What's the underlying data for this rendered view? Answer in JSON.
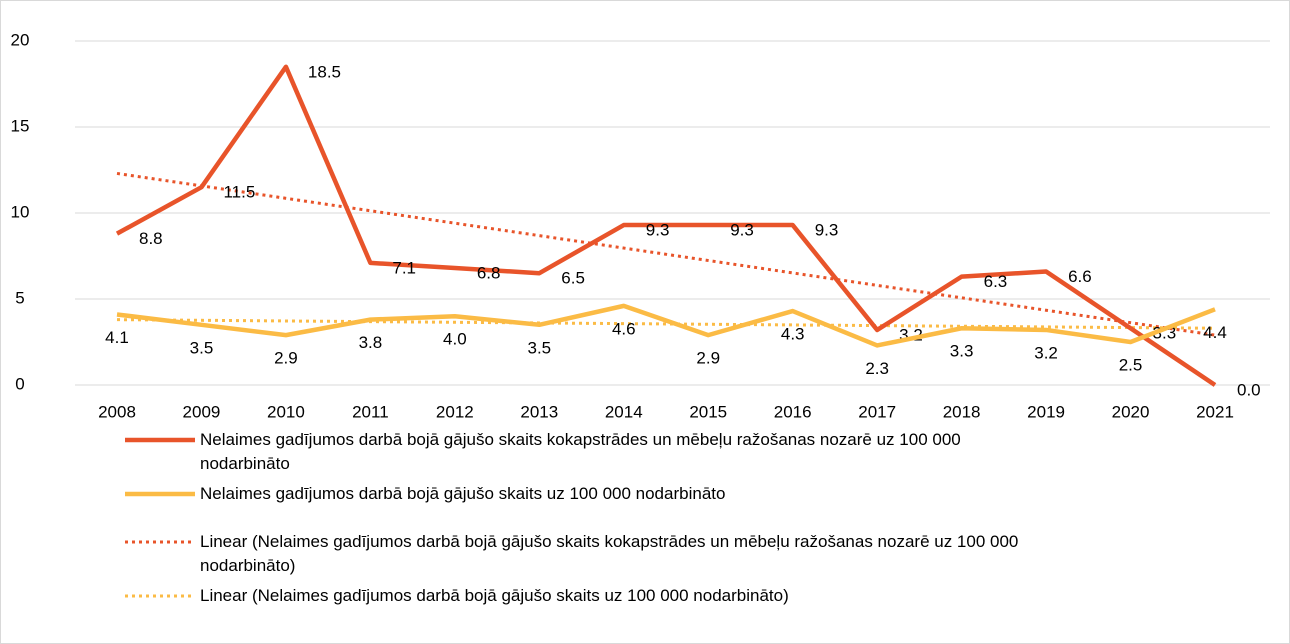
{
  "chart_data": {
    "type": "line",
    "categories": [
      "2008",
      "2009",
      "2010",
      "2011",
      "2012",
      "2013",
      "2014",
      "2015",
      "2016",
      "2017",
      "2018",
      "2019",
      "2020",
      "2021"
    ],
    "series": [
      {
        "name": "Nelaimes gadījumos darbā bojā gājušo skaits kokapstrādes un mēbeļu ražošanas nozarē uz 100 000 nodarbināto",
        "color": "#e8542a",
        "values": [
          8.8,
          11.5,
          18.5,
          7.1,
          6.8,
          6.5,
          9.3,
          9.3,
          9.3,
          3.2,
          6.3,
          6.6,
          3.3,
          0.0
        ],
        "value_labels": [
          "8.8",
          "11.5",
          "18.5",
          "7.1",
          "6.8",
          "6.5",
          "9.3",
          "9.3",
          "9.3",
          "3.2",
          "6.3",
          "6.6",
          "3.3",
          "0.0"
        ]
      },
      {
        "name": "Nelaimes gadījumos darbā bojā gājušo skaits uz 100 000 nodarbināto",
        "color": "#fbbb45",
        "values": [
          4.1,
          3.5,
          2.9,
          3.8,
          4.0,
          3.5,
          4.6,
          2.9,
          4.3,
          2.3,
          3.3,
          3.2,
          2.5,
          4.4
        ],
        "value_labels": [
          "4.1",
          "3.5",
          "2.9",
          "3.8",
          "4.0",
          "3.5",
          "4.6",
          "2.9",
          "4.3",
          "2.3",
          "3.3",
          "3.2",
          "2.5",
          "4.4"
        ]
      }
    ],
    "trendlines": [
      {
        "name": "Linear (Nelaimes gadījumos darbā bojā gājušo skaits kokapstrādes un mēbeļu ražošanas nozarē uz 100 000 nodarbināto)",
        "color": "#e8542a",
        "start": 12.3,
        "end": 2.9
      },
      {
        "name": "Linear (Nelaimes gadījumos darbā bojā gājušo skaits uz 100 000 nodarbināto)",
        "color": "#fbbb45",
        "start": 3.8,
        "end": 3.3
      }
    ],
    "ylim": [
      0,
      20
    ],
    "yticks": [
      0,
      5,
      10,
      15,
      20
    ],
    "grid": true
  }
}
